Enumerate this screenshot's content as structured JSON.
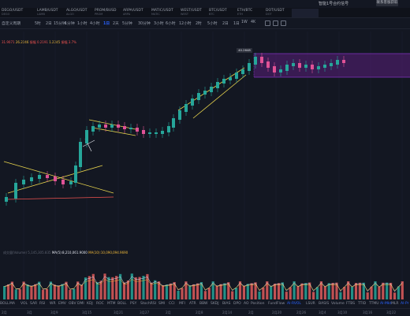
{
  "notice": {
    "text": "智能1号合约信号",
    "button": "联系客服获取"
  },
  "tabs": [
    {
      "label": "DEGO/USDT",
      "sub": "DEGO"
    },
    {
      "label": "LAMB/USDT",
      "sub": "LAMB"
    },
    {
      "label": "ALGO/USDT",
      "sub": "ALGO"
    },
    {
      "label": "PROM/BUSD",
      "sub": "PROM"
    },
    {
      "label": "ARPA/USDT",
      "sub": "ARPA"
    },
    {
      "label": "MATIC/USDT",
      "sub": "MATIC"
    },
    {
      "label": "WEST/USDT",
      "sub": "WEST"
    },
    {
      "label": "BTC/USDT",
      "sub": "BTC"
    },
    {
      "label": "ETH/BTC",
      "sub": "ETH"
    },
    {
      "label": "DOT/USDT",
      "sub": "DOT"
    }
  ],
  "toolbar": {
    "layout_label": "自定义周期",
    "intervals": [
      "5时",
      "2日",
      "15分钟",
      "1分钟",
      "1小时",
      "4小时",
      "1日",
      "2天",
      "5分钟",
      "30分钟",
      "3小时",
      "6小时",
      "12小时",
      "2时",
      "5小时",
      "2日",
      "1日",
      "1W",
      "4K"
    ],
    "active_interval": "1日"
  },
  "legend": {
    "a_label": "",
    "a_val1": "31.9071",
    "a_val2": "26.2246",
    "b_label": "振幅",
    "b_val1": "0.2191",
    "b_val2": "1.2245",
    "c_label": "振幅",
    "c_val": "3.7%"
  },
  "price_marker": "40.2648",
  "volume": {
    "title": "成交量(Volume)",
    "value": "5,145,305.835",
    "ma5": "MA(5):8,210,061.9000",
    "ma10": "MA(10):10,090,094.9690"
  },
  "indicators": [
    "BOLL",
    "MA",
    "VOL",
    "SAR",
    "RSI",
    "WR",
    "EMV",
    "OBV",
    "DMI",
    "KDJ",
    "ROC",
    "MTM",
    "BOLL",
    "PSY",
    "StochRSI",
    "SMI",
    "CCI",
    "MFI",
    "ATR",
    "BBW",
    "SKDJ",
    "BIAS",
    "DPO",
    "AO",
    "Position",
    "FundFlow",
    "Al-RVOL",
    "LSUR",
    "BASIS",
    "Volume",
    "FTBS",
    "TTID",
    "TTMU",
    "Al-Mkt",
    "MLR",
    "Al-Pr"
  ],
  "dates": [
    "2月",
    "3月",
    "3月9",
    "3月15",
    "3月21",
    "3月27",
    "2月",
    "2月8",
    "2月14",
    "2月",
    "2月20",
    "2月26",
    "3月4",
    "3月10",
    "3月16",
    "3月22"
  ],
  "colors": {
    "up": "#26a69a",
    "down": "#ef5350",
    "accent": "#2962ff",
    "highlight": "#8b2fc9"
  },
  "icons": [
    "candle-type-icon",
    "indicator-icon",
    "settings-icon"
  ]
}
